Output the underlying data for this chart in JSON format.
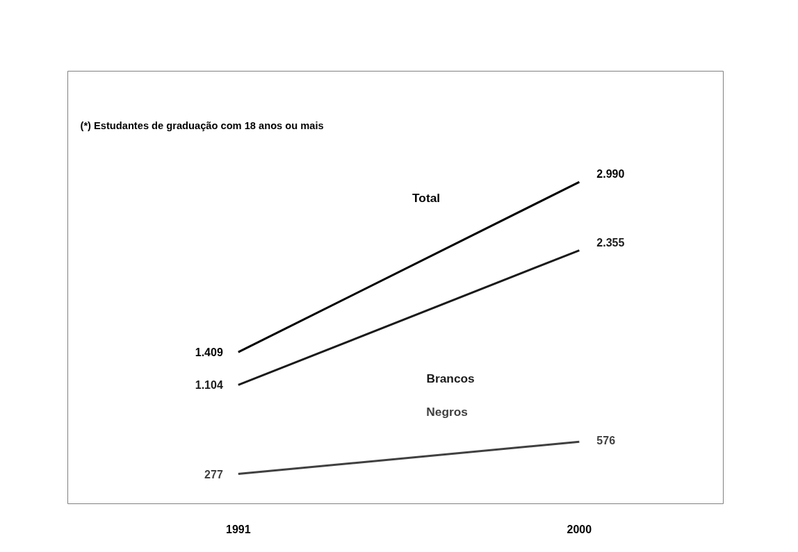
{
  "chart_data": {
    "type": "line",
    "x": [
      1991,
      2000
    ],
    "xlim": [
      1986.5,
      2003.8
    ],
    "xticks": [
      1991,
      2000
    ],
    "ylim": [
      0,
      4020
    ],
    "tick_labels": "x",
    "grid": false,
    "marker": "none",
    "line_style": "solid",
    "series": [
      {
        "name": "Total",
        "color": "#000000",
        "values": [
          1409,
          2990
        ],
        "value_labels": [
          "1.409",
          "2.990"
        ]
      },
      {
        "name": "Brancos",
        "color": "#1a1a1a",
        "values": [
          1104,
          2355
        ],
        "value_labels": [
          "1.104",
          "2.355"
        ]
      },
      {
        "name": "Negros",
        "color": "#404040",
        "values": [
          277,
          576
        ],
        "value_labels": [
          "277",
          "576"
        ]
      }
    ],
    "annotations": [
      "(*) Estudantes de graduação com 18 anos ou mais"
    ]
  }
}
